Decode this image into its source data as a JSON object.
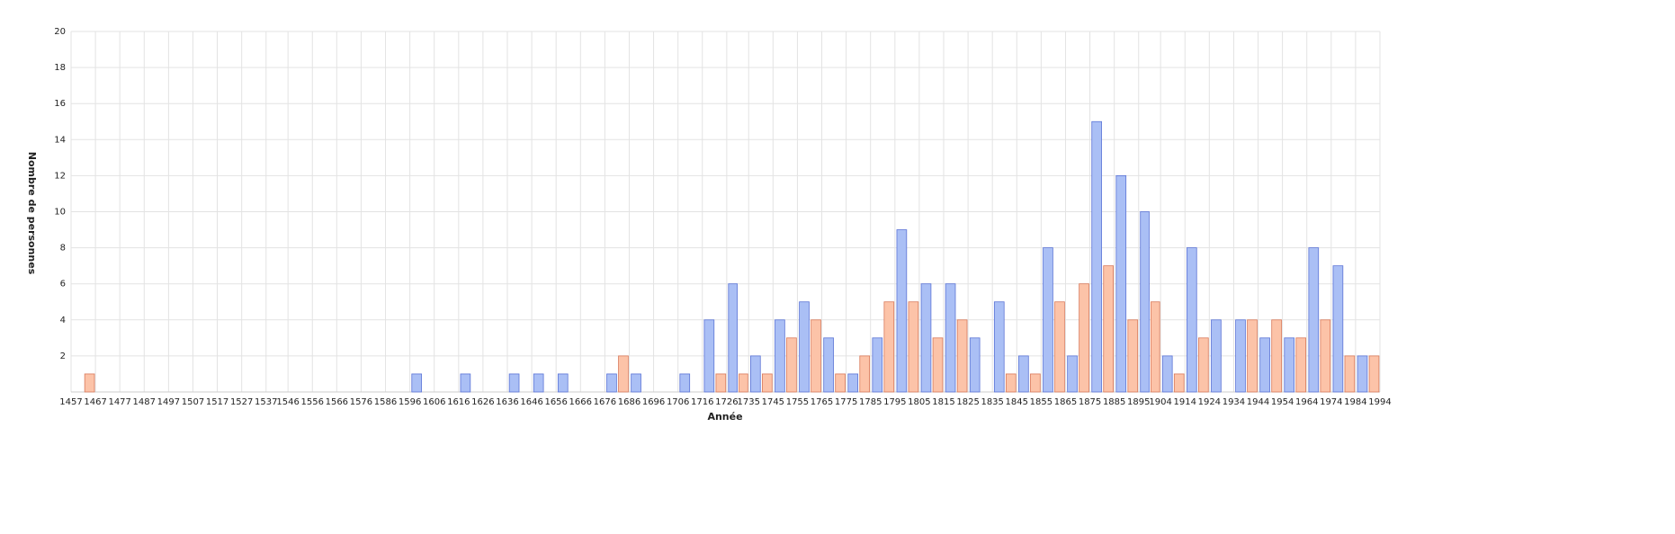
{
  "chart_data": {
    "type": "histogram",
    "x_label": "Année",
    "y_label": "Nombre de personnes",
    "bins": [
      1457,
      1467,
      1477,
      1487,
      1497,
      1507,
      1517,
      1527,
      1537,
      1546,
      1556,
      1566,
      1576,
      1586,
      1596,
      1606,
      1616,
      1626,
      1636,
      1646,
      1656,
      1666,
      1676,
      1686,
      1696,
      1706,
      1716,
      1726,
      1735,
      1745,
      1755,
      1765,
      1775,
      1785,
      1795,
      1805,
      1815,
      1825,
      1835,
      1845,
      1855,
      1865,
      1875,
      1885,
      1895,
      1904,
      1914,
      1924,
      1934,
      1944,
      1954,
      1964,
      1974,
      1984,
      1994
    ],
    "series": [
      {
        "color": "#aabff5",
        "values": [
          0,
          0,
          0,
          0,
          0,
          0,
          0,
          0,
          0,
          0,
          0,
          0,
          0,
          0,
          1,
          0,
          1,
          0,
          1,
          1,
          1,
          0,
          1,
          1,
          0,
          1,
          4,
          6,
          2,
          4,
          5,
          3,
          1,
          3,
          9,
          6,
          6,
          3,
          5,
          2,
          8,
          2,
          15,
          12,
          10,
          2,
          8,
          4,
          4,
          3,
          3,
          8,
          7,
          2
        ]
      },
      {
        "color": "#fcc3a8",
        "values": [
          1,
          0,
          0,
          0,
          0,
          0,
          0,
          0,
          0,
          0,
          0,
          0,
          0,
          0,
          0,
          0,
          0,
          0,
          0,
          0,
          0,
          0,
          2,
          0,
          0,
          0,
          1,
          1,
          1,
          3,
          4,
          1,
          2,
          5,
          5,
          3,
          4,
          0,
          1,
          1,
          5,
          6,
          7,
          4,
          5,
          1,
          3,
          0,
          4,
          4,
          3,
          4,
          2,
          2
        ]
      }
    ],
    "ylim": [
      0,
      20
    ],
    "yticks": [
      2,
      4,
      6,
      8,
      10,
      12,
      14,
      16,
      18,
      20
    ],
    "grid": true
  }
}
